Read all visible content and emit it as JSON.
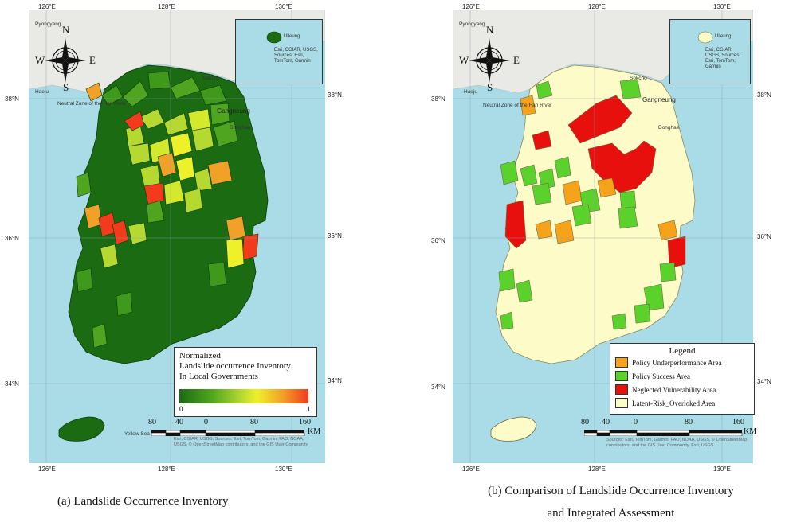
{
  "panel_a": {
    "coords": {
      "lon_left": "126°E",
      "lon_mid": "128°E",
      "lon_right": "130°E",
      "lat_38": "38°N",
      "lat_36": "36°N",
      "lat_34": "34°N"
    },
    "places": {
      "pyongyang": "Pyongyang",
      "haeju": "Haeju",
      "dmz": "Neutral Zone of the Han River",
      "sokcho": "Sokcho",
      "gangneung": "Gangneung",
      "donghae": "Donghae",
      "yellow_sea": "Yellow Sea"
    },
    "inset_label": "Ulleung",
    "inset_attrib": "Esri, CGIAR, USGS, Sources: Esri, TomTom, Garmin",
    "compass": {
      "n": "N",
      "s": "S",
      "e": "E",
      "w": "W"
    },
    "legend": {
      "line1": "Normalized",
      "line2": "Landslide occurrence Inventory",
      "line3": "In Local Governments",
      "min": "0",
      "max": "1"
    },
    "scale": {
      "n80l": "80",
      "n40": "40",
      "n0": "0",
      "n80r": "80",
      "n160": "160",
      "unit": "KM"
    },
    "attribution": "Esri, CGIAR, USGS, Sources: Esri, TomTom, Garmin, FAO, NOAA, USGS, © OpenStreetMap contributors, and the GIS User Community",
    "caption": "(a)  Landslide  Occurrence  Inventory"
  },
  "panel_b": {
    "coords": {
      "lon_left": "126°E",
      "lon_mid": "128°E",
      "lon_right": "130°E",
      "lat_38": "38°N",
      "lat_36": "36°N",
      "lat_34": "34°N"
    },
    "places": {
      "pyongyang": "Pyongyang",
      "haeju": "Haeju",
      "dmz": "Neutral Zone of the Han River",
      "sokcho": "Sokcho",
      "gangneung": "Gangneung",
      "donghae": "Donghae"
    },
    "inset_label": "Ulleung",
    "inset_attrib": "Esri, CGIAR, USGS, Sources: Esri, TomTom, Garmin",
    "compass": {
      "n": "N",
      "s": "S",
      "e": "E",
      "w": "W"
    },
    "legend": {
      "title": "Legend",
      "items": [
        {
          "label": "Policy Underperformance Area",
          "color": "#f7a21b"
        },
        {
          "label": "Policy Success Area",
          "color": "#5bd12b"
        },
        {
          "label": "Neglected Vulnerability Area",
          "color": "#e8100c"
        },
        {
          "label": "Latent-Risk_Overloked Area",
          "color": "#fdfbc8"
        }
      ]
    },
    "scale": {
      "n80l": "80",
      "n40": "40",
      "n0": "0",
      "n80r": "80",
      "n160": "160",
      "unit": "KM"
    },
    "attribution": "Sources: Esri, TomTom, Garmin, FAO, NOAA, USGS, © OpenStreetMap contributors, and the GIS User Community, Esri, USGS",
    "caption_line1": "(b)  Comparison  of  Landslide  Occurrence  Inventory",
    "caption_line2": "and  Integrated  Assessment"
  },
  "colors": {
    "sea": "#a9dce6",
    "land_bg": "#e9e9e6",
    "forest_dark": "#1a6b12",
    "green_mid": "#3f9a1c",
    "yellow_green": "#b5d930",
    "yellow": "#eef02a",
    "orange": "#f2a128",
    "red": "#f23a1c",
    "cream": "#fdfbc8",
    "b_orange": "#f7a21b",
    "b_green": "#5bd12b",
    "b_red": "#e8100c"
  }
}
